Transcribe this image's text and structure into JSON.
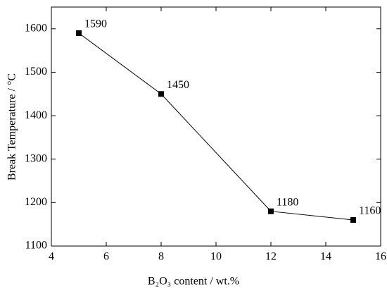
{
  "chart_data": {
    "type": "line",
    "title": null,
    "x_label": "B₂O₃ content / wt.%",
    "y_label": "Break Temperature / °C",
    "x": [
      5,
      8,
      12,
      15
    ],
    "series": [
      {
        "name": null,
        "color": "#000000",
        "values": [
          1590,
          1450,
          1180,
          1160
        ]
      }
    ],
    "xlim": [
      4,
      16
    ],
    "xticks": [
      4,
      6,
      8,
      10,
      12,
      14,
      16
    ],
    "ylim": [
      1100,
      1650
    ],
    "yticks": [
      1100,
      1200,
      1300,
      1400,
      1500,
      1600
    ],
    "grid": false
  }
}
